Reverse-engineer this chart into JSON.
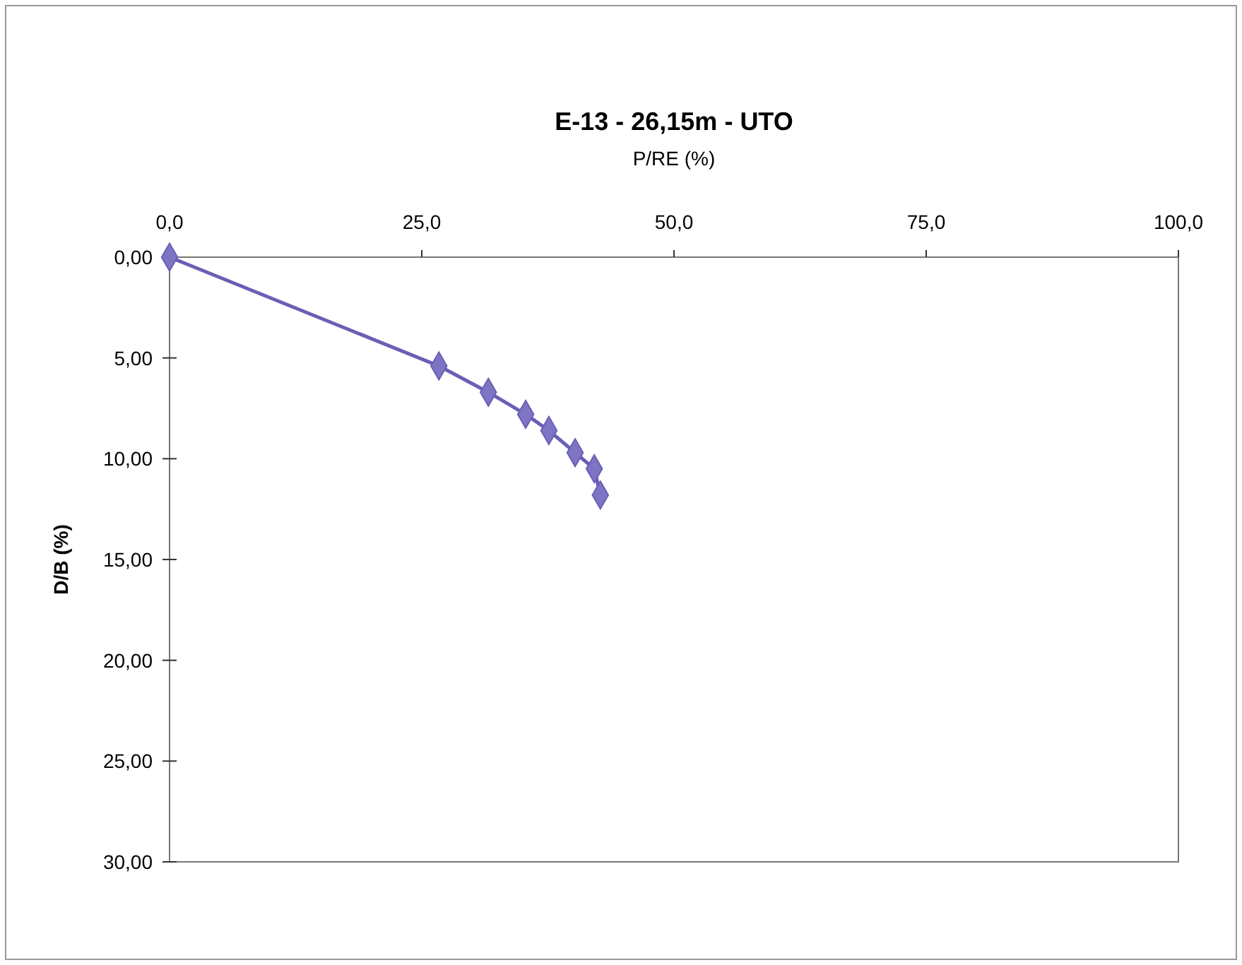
{
  "chart_data": {
    "type": "line",
    "title": "E-13 - 26,15m - UTO",
    "xlabel": "P/RE (%)",
    "ylabel": "D/B (%)",
    "x": [
      0,
      26.7,
      31.6,
      35.3,
      37.6,
      40.2,
      42.1,
      42.7
    ],
    "series": [
      {
        "color": "#6a5fb5",
        "values": [
          0,
          5.4,
          6.7,
          7.8,
          8.6,
          9.7,
          10.5,
          11.8
        ]
      }
    ],
    "xlim": [
      0,
      100
    ],
    "xticks": [
      {
        "value": 0,
        "label": "0,0"
      },
      {
        "value": 25,
        "label": "25,0"
      },
      {
        "value": 50,
        "label": "50,0"
      },
      {
        "value": 75,
        "label": "75,0"
      },
      {
        "value": 100,
        "label": "100,0"
      }
    ],
    "ylim": [
      30,
      0
    ],
    "yticks": [
      {
        "value": 0,
        "label": "0,00"
      },
      {
        "value": 5,
        "label": "5,00"
      },
      {
        "value": 10,
        "label": "10,00"
      },
      {
        "value": 15,
        "label": "15,00"
      },
      {
        "value": 20,
        "label": "20,00"
      },
      {
        "value": 25,
        "label": "25,00"
      },
      {
        "value": 30,
        "label": "30,00"
      }
    ],
    "marker": "diamond",
    "grid": false
  }
}
